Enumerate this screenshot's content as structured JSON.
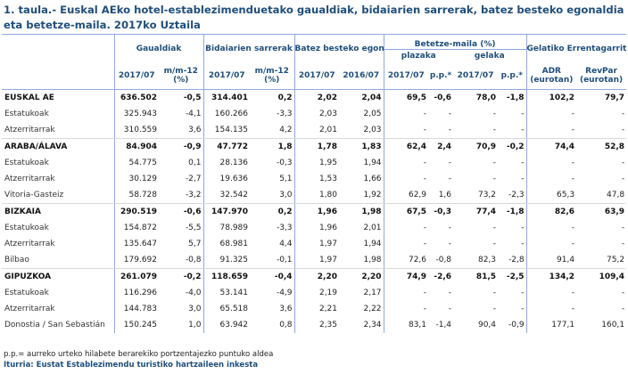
{
  "title": "1. taula.- Euskal AEko hotel-establezimenduetako gaualdiak, bidaiarien sarrerak, batez besteko egonaldia eta betetze-maila. 2017ko Uztaila",
  "headers": {
    "gaualdiak": "Gaualdiak",
    "bidaiarien": "Bidaiarien sarrerak",
    "egonaldia": "Batez besteko egonaldia",
    "betetze": "Betetze-maila (%)",
    "plazaka": "plazaka",
    "gelaka": "gelaka",
    "gelatiko": "Gelatiko Errentagarritasuna",
    "y2017": "2017/07",
    "y2016": "2016/07",
    "mm12": "m/m-12 (%)",
    "pp": "p.p.*",
    "adr": "ADR (eurotan)",
    "revpar": "RevPar (eurotan)"
  },
  "rows": [
    {
      "label": "EUSKAL AE",
      "bold": true,
      "v": [
        "636.502",
        "-0,5",
        "314.401",
        "0,2",
        "2,02",
        "2,04",
        "69,5",
        "-0,6",
        "78,0",
        "-1,8",
        "102,2",
        "79,7"
      ]
    },
    {
      "label": "Estatukoak",
      "bold": false,
      "v": [
        "325.943",
        "-4,1",
        "160.266",
        "-3,3",
        "2,03",
        "2,05",
        "-",
        "-",
        "-",
        "-",
        "-",
        "-"
      ]
    },
    {
      "label": "Atzerritarrak",
      "bold": false,
      "v": [
        "310.559",
        "3,6",
        "154.135",
        "4,2",
        "2,01",
        "2,03",
        "-",
        "-",
        "-",
        "-",
        "-",
        "-"
      ]
    },
    {
      "label": "ARABA/ÁLAVA",
      "bold": true,
      "v": [
        "84.904",
        "-0,9",
        "47.772",
        "1,8",
        "1,78",
        "1,83",
        "62,4",
        "2,4",
        "70,9",
        "-0,2",
        "74,4",
        "52,8"
      ]
    },
    {
      "label": "Estatukoak",
      "bold": false,
      "v": [
        "54.775",
        "0,1",
        "28.136",
        "-0,3",
        "1,95",
        "1,94",
        "-",
        "-",
        "-",
        "-",
        "-",
        "-"
      ]
    },
    {
      "label": "Atzerritarrak",
      "bold": false,
      "v": [
        "30.129",
        "-2,7",
        "19.636",
        "5,1",
        "1,53",
        "1,66",
        "-",
        "-",
        "-",
        "-",
        "-",
        "-"
      ]
    },
    {
      "label": "Vitoria-Gasteiz",
      "bold": false,
      "v": [
        "58.728",
        "-3,2",
        "32.542",
        "3,0",
        "1,80",
        "1,92",
        "62,9",
        "1,6",
        "73,2",
        "-2,3",
        "65,3",
        "47,8"
      ]
    },
    {
      "label": "BIZKAIA",
      "bold": true,
      "v": [
        "290.519",
        "-0,6",
        "147.970",
        "0,2",
        "1,96",
        "1,98",
        "67,5",
        "-0,3",
        "77,4",
        "-1,8",
        "82,6",
        "63,9"
      ]
    },
    {
      "label": "Estatukoak",
      "bold": false,
      "v": [
        "154.872",
        "-5,5",
        "78.989",
        "-3,3",
        "1,96",
        "2,01",
        "-",
        "-",
        "-",
        "-",
        "-",
        "-"
      ]
    },
    {
      "label": "Atzerritarrak",
      "bold": false,
      "v": [
        "135.647",
        "5,7",
        "68.981",
        "4,4",
        "1,97",
        "1,94",
        "-",
        "-",
        "-",
        "-",
        "-",
        "-"
      ]
    },
    {
      "label": "Bilbao",
      "bold": false,
      "v": [
        "179.692",
        "-0,8",
        "91.325",
        "-0,1",
        "1,97",
        "1,98",
        "72,6",
        "-0,8",
        "82,3",
        "-2,8",
        "91,4",
        "75,2"
      ]
    },
    {
      "label": "GIPUZKOA",
      "bold": true,
      "v": [
        "261.079",
        "-0,2",
        "118.659",
        "-0,4",
        "2,20",
        "2,20",
        "74,9",
        "-2,6",
        "81,5",
        "-2,5",
        "134,2",
        "109,4"
      ]
    },
    {
      "label": "Estatukoak",
      "bold": false,
      "v": [
        "116.296",
        "-4,0",
        "53.141",
        "-4,9",
        "2,19",
        "2,17",
        "-",
        "-",
        "-",
        "-",
        "-",
        "-"
      ]
    },
    {
      "label": "Atzerritarrak",
      "bold": false,
      "v": [
        "144.783",
        "3,0",
        "65.518",
        "3,6",
        "2,21",
        "2,22",
        "-",
        "-",
        "-",
        "-",
        "-",
        "-"
      ]
    },
    {
      "label": "Donostia / San Sebastián",
      "bold": false,
      "v": [
        "150.245",
        "1,0",
        "63.942",
        "0,8",
        "2,35",
        "2,34",
        "83,1",
        "-1,4",
        "90,4",
        "-0,9",
        "177,1",
        "160,1"
      ]
    }
  ],
  "footnote": "p.p.= aurreko urteko hilabete berarekiko portzentajezko puntuko aldea",
  "source": "Iturria: Eustat Establezimendu turistiko hartzaileen inkesta"
}
